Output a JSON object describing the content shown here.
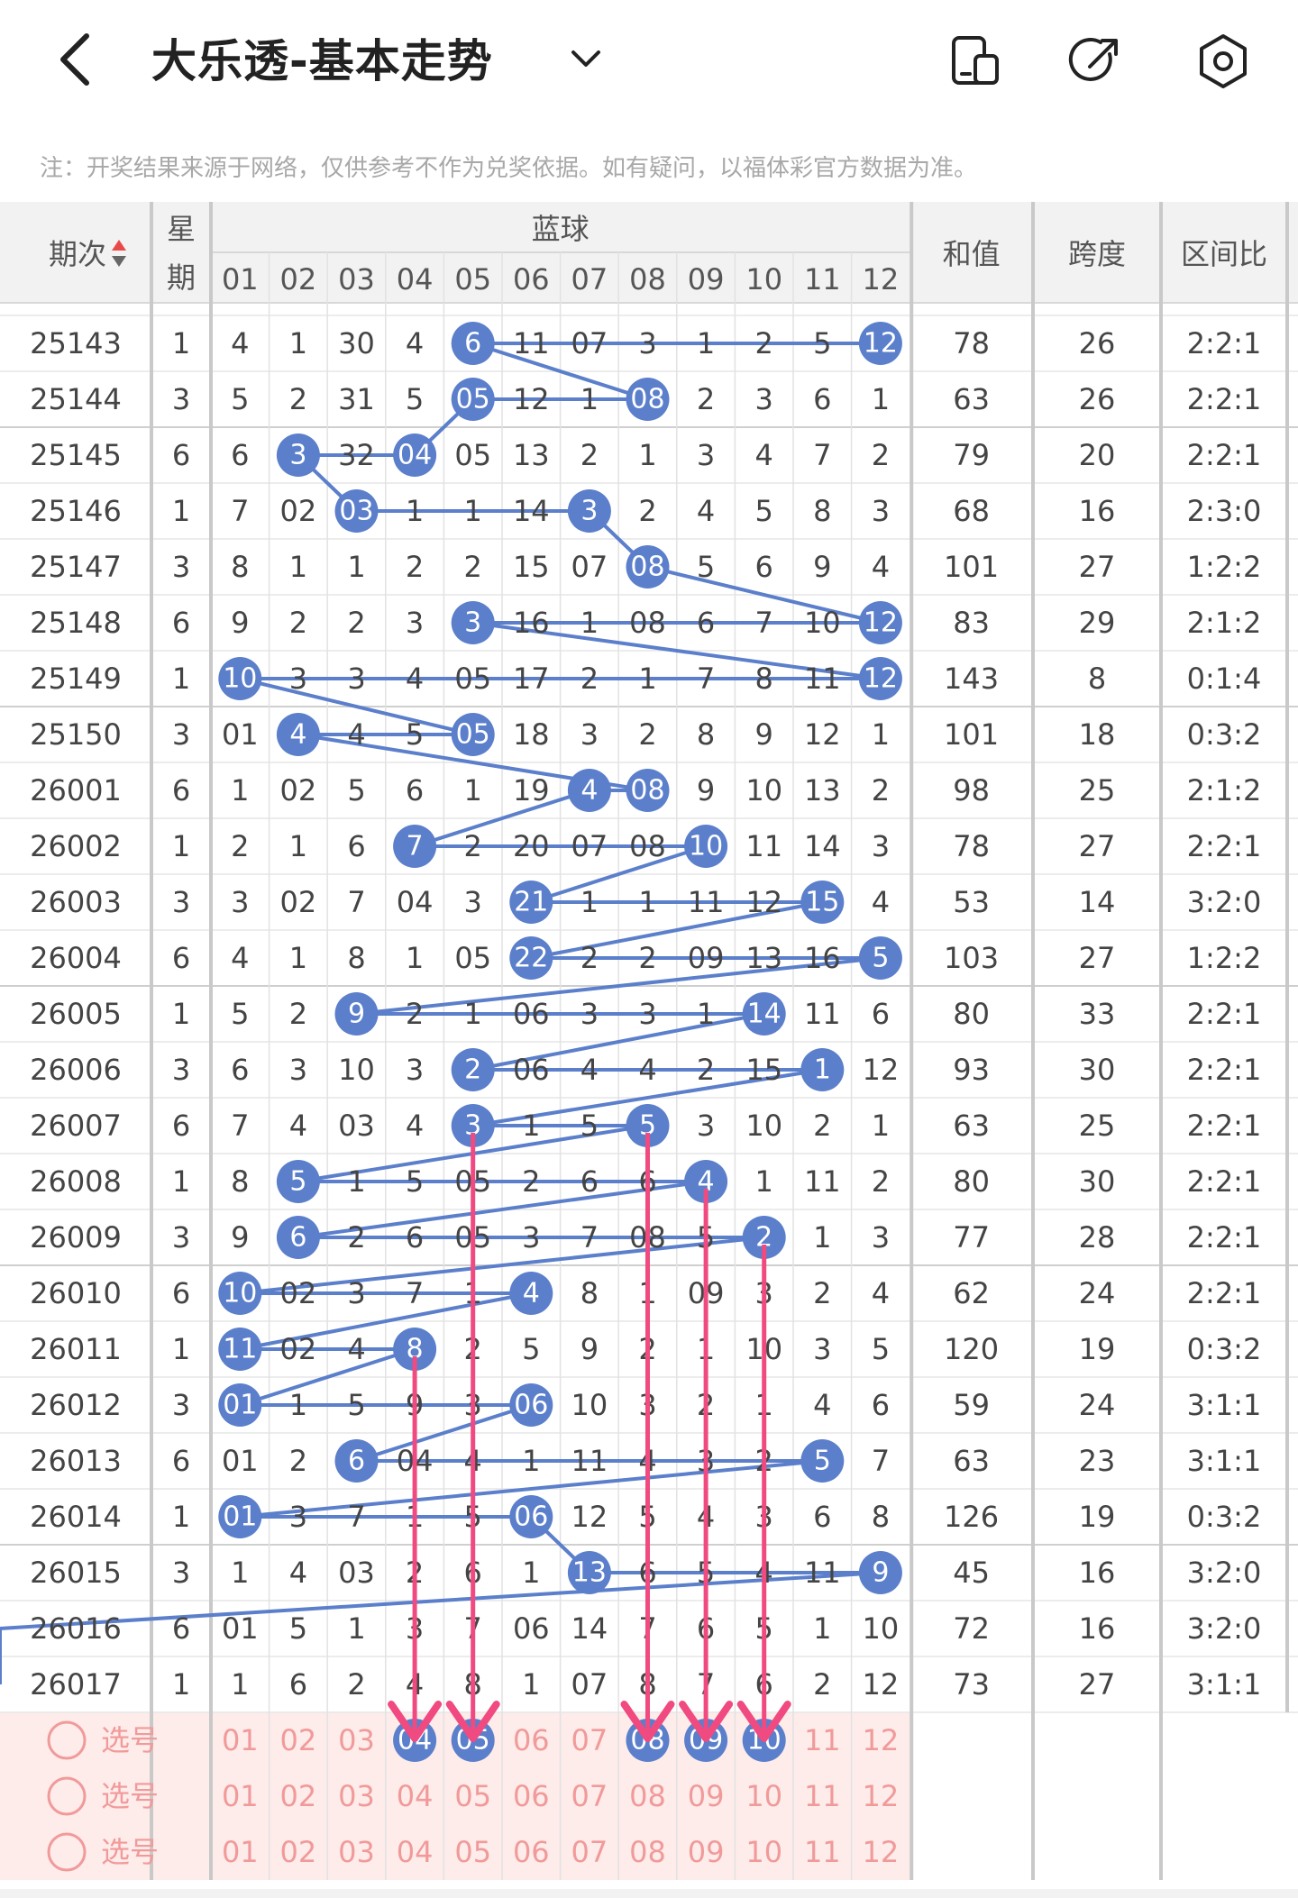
{
  "header": {
    "title": "大乐透-基本走势",
    "back_icon": "back-arrow-icon",
    "dropdown_icon": "chevron-down-icon",
    "actions": [
      "phone-layout-icon",
      "share-icon",
      "settings-icon"
    ]
  },
  "notice": "注：开奖结果来源于网络，仅供参考不作为兑奖依据。如有疑问，以福体彩官方数据为准。",
  "columns": {
    "issue": "期次",
    "weekday": "星期",
    "blue_group": "蓝球",
    "blue_numbers": [
      "01",
      "02",
      "03",
      "04",
      "05",
      "06",
      "07",
      "08",
      "09",
      "10",
      "11",
      "12"
    ],
    "sum": "和值",
    "span": "跨度",
    "ratio": "区间比"
  },
  "rows": [
    {
      "issue": "25143",
      "week": "1",
      "cells": [
        "4",
        "1",
        "30",
        "4",
        "6",
        "11",
        "07",
        "3",
        "1",
        "2",
        "5",
        "12"
      ],
      "sum": "78",
      "span": "26",
      "ratio": "2:2:1"
    },
    {
      "issue": "25144",
      "week": "3",
      "cells": [
        "5",
        "2",
        "31",
        "5",
        "05",
        "12",
        "1",
        "08",
        "2",
        "3",
        "6",
        "1"
      ],
      "sum": "63",
      "span": "26",
      "ratio": "2:2:1"
    },
    {
      "issue": "25145",
      "week": "6",
      "cells": [
        "6",
        "3",
        "32",
        "04",
        "05",
        "13",
        "2",
        "1",
        "3",
        "4",
        "7",
        "2"
      ],
      "sum": "79",
      "span": "20",
      "ratio": "2:2:1"
    },
    {
      "issue": "25146",
      "week": "1",
      "cells": [
        "7",
        "02",
        "03",
        "1",
        "1",
        "14",
        "3",
        "2",
        "4",
        "5",
        "8",
        "3"
      ],
      "sum": "68",
      "span": "16",
      "ratio": "2:3:0"
    },
    {
      "issue": "25147",
      "week": "3",
      "cells": [
        "8",
        "1",
        "1",
        "2",
        "2",
        "15",
        "07",
        "08",
        "5",
        "6",
        "9",
        "4"
      ],
      "sum": "101",
      "span": "27",
      "ratio": "1:2:2"
    },
    {
      "issue": "25148",
      "week": "6",
      "cells": [
        "9",
        "2",
        "2",
        "3",
        "3",
        "16",
        "1",
        "08",
        "6",
        "7",
        "10",
        "12"
      ],
      "sum": "83",
      "span": "29",
      "ratio": "2:1:2"
    },
    {
      "issue": "25149",
      "week": "1",
      "cells": [
        "10",
        "3",
        "3",
        "4",
        "05",
        "17",
        "2",
        "1",
        "7",
        "8",
        "11",
        "12"
      ],
      "sum": "143",
      "span": "8",
      "ratio": "0:1:4"
    },
    {
      "issue": "25150",
      "week": "3",
      "cells": [
        "01",
        "4",
        "4",
        "5",
        "05",
        "18",
        "3",
        "2",
        "8",
        "9",
        "12",
        "1"
      ],
      "sum": "101",
      "span": "18",
      "ratio": "0:3:2"
    },
    {
      "issue": "26001",
      "week": "6",
      "cells": [
        "1",
        "02",
        "5",
        "6",
        "1",
        "19",
        "4",
        "08",
        "9",
        "10",
        "13",
        "2"
      ],
      "sum": "98",
      "span": "25",
      "ratio": "2:1:2"
    },
    {
      "issue": "26002",
      "week": "1",
      "cells": [
        "2",
        "1",
        "6",
        "7",
        "2",
        "20",
        "07",
        "08",
        "10",
        "11",
        "14",
        "3"
      ],
      "sum": "78",
      "span": "27",
      "ratio": "2:2:1"
    },
    {
      "issue": "26003",
      "week": "3",
      "cells": [
        "3",
        "02",
        "7",
        "04",
        "3",
        "21",
        "1",
        "1",
        "11",
        "12",
        "15",
        "4"
      ],
      "sum": "53",
      "span": "14",
      "ratio": "3:2:0"
    },
    {
      "issue": "26004",
      "week": "6",
      "cells": [
        "4",
        "1",
        "8",
        "1",
        "05",
        "22",
        "2",
        "2",
        "09",
        "13",
        "16",
        "5"
      ],
      "sum": "103",
      "span": "27",
      "ratio": "1:2:2"
    },
    {
      "issue": "26005",
      "week": "1",
      "cells": [
        "5",
        "2",
        "9",
        "2",
        "1",
        "06",
        "3",
        "3",
        "1",
        "14",
        "11",
        "6"
      ],
      "sum": "80",
      "span": "33",
      "ratio": "2:2:1"
    },
    {
      "issue": "26006",
      "week": "3",
      "cells": [
        "6",
        "3",
        "10",
        "3",
        "2",
        "06",
        "4",
        "4",
        "2",
        "15",
        "1",
        "12"
      ],
      "sum": "93",
      "span": "30",
      "ratio": "2:2:1"
    },
    {
      "issue": "26007",
      "week": "6",
      "cells": [
        "7",
        "4",
        "03",
        "4",
        "3",
        "1",
        "5",
        "5",
        "3",
        "10",
        "2",
        "1"
      ],
      "sum": "63",
      "span": "25",
      "ratio": "2:2:1"
    },
    {
      "issue": "26008",
      "week": "1",
      "cells": [
        "8",
        "5",
        "1",
        "5",
        "05",
        "2",
        "6",
        "6",
        "4",
        "1",
        "11",
        "2"
      ],
      "sum": "80",
      "span": "30",
      "ratio": "2:2:1"
    },
    {
      "issue": "26009",
      "week": "3",
      "cells": [
        "9",
        "6",
        "2",
        "6",
        "05",
        "3",
        "7",
        "08",
        "5",
        "2",
        "1",
        "3"
      ],
      "sum": "77",
      "span": "28",
      "ratio": "2:2:1"
    },
    {
      "issue": "26010",
      "week": "6",
      "cells": [
        "10",
        "02",
        "3",
        "7",
        "1",
        "4",
        "8",
        "1",
        "09",
        "3",
        "2",
        "4"
      ],
      "sum": "62",
      "span": "24",
      "ratio": "2:2:1"
    },
    {
      "issue": "26011",
      "week": "1",
      "cells": [
        "11",
        "02",
        "4",
        "8",
        "2",
        "5",
        "9",
        "2",
        "1",
        "10",
        "3",
        "5"
      ],
      "sum": "120",
      "span": "19",
      "ratio": "0:3:2"
    },
    {
      "issue": "26012",
      "week": "3",
      "cells": [
        "01",
        "1",
        "5",
        "9",
        "3",
        "06",
        "10",
        "3",
        "2",
        "1",
        "4",
        "6"
      ],
      "sum": "59",
      "span": "24",
      "ratio": "3:1:1"
    },
    {
      "issue": "26013",
      "week": "6",
      "cells": [
        "01",
        "2",
        "6",
        "04",
        "4",
        "1",
        "11",
        "4",
        "3",
        "2",
        "5",
        "7"
      ],
      "sum": "63",
      "span": "23",
      "ratio": "3:1:1"
    },
    {
      "issue": "26014",
      "week": "1",
      "cells": [
        "01",
        "3",
        "7",
        "1",
        "5",
        "06",
        "12",
        "5",
        "4",
        "3",
        "6",
        "8"
      ],
      "sum": "126",
      "span": "19",
      "ratio": "0:3:2"
    },
    {
      "issue": "26015",
      "week": "3",
      "cells": [
        "1",
        "4",
        "03",
        "2",
        "6",
        "1",
        "13",
        "6",
        "5",
        "4",
        "11",
        "9"
      ],
      "sum": "45",
      "span": "16",
      "ratio": "3:2:0"
    },
    {
      "issue": "26016",
      "week": "6",
      "cells": [
        "01",
        "5",
        "1",
        "3",
        "7",
        "06",
        "14",
        "7",
        "6",
        "5",
        "1",
        "10"
      ],
      "sum": "72",
      "span": "16",
      "ratio": "3:2:0"
    },
    {
      "issue": "26017",
      "week": "1",
      "cells": [
        "1",
        "6",
        "2",
        "4",
        "8",
        "1",
        "07",
        "8",
        "7",
        "6",
        "2",
        "12"
      ],
      "sum": "73",
      "span": "27",
      "ratio": "3:1:1"
    }
  ],
  "hits": [
    12,
    5,
    8,
    5,
    4,
    2,
    3,
    7,
    8,
    8,
    12,
    5,
    12,
    1,
    5,
    2,
    8,
    7,
    4,
    9,
    6,
    11,
    6,
    12,
    3,
    10,
    5,
    11,
    5,
    8,
    2,
    9,
    2,
    10,
    1,
    6,
    1,
    4,
    1,
    6,
    3,
    11,
    1,
    6,
    7,
    12
  ],
  "select_rows": [
    {
      "label": "选号",
      "selected": [
        "04",
        "05",
        "08",
        "09",
        "10"
      ]
    },
    {
      "label": "选号",
      "selected": []
    },
    {
      "label": "选号",
      "selected": []
    }
  ],
  "arrows": [
    "04",
    "05",
    "08",
    "09",
    "10"
  ],
  "colors": {
    "ball": "#5b7fcb",
    "line": "#5b7fcb",
    "arrow": "#f04a80",
    "select_bg": "#fdecea",
    "select_text": "#f19a9a",
    "header_bg": "#f2f2f2",
    "sort_up": "#e84a4a"
  }
}
